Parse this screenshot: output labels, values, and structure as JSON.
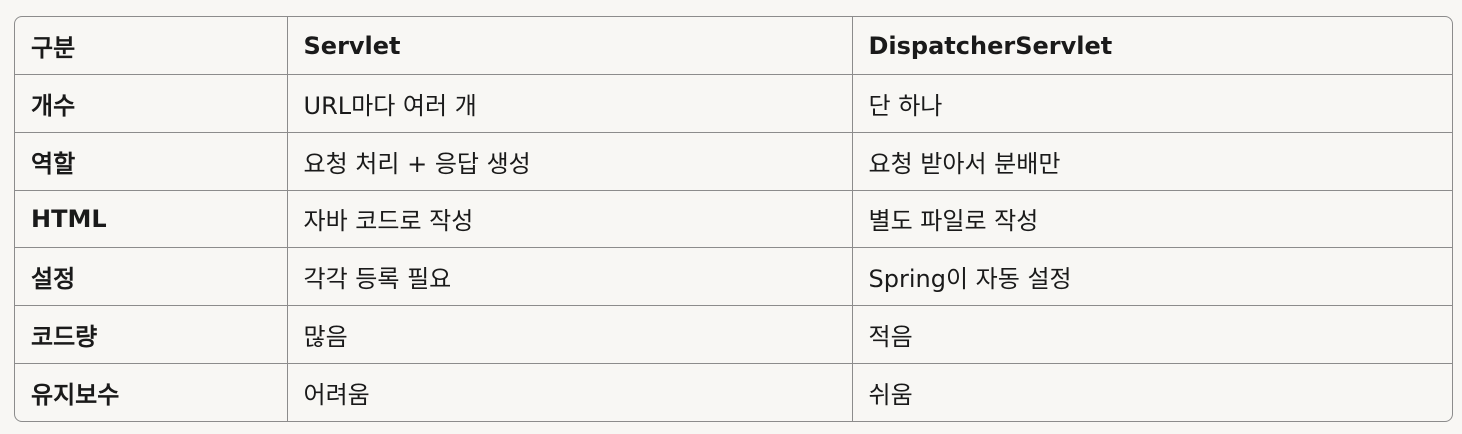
{
  "table": {
    "headers": [
      "구분",
      "Servlet",
      "DispatcherServlet"
    ],
    "rows": [
      [
        "개수",
        "URL마다 여러 개",
        "단 하나"
      ],
      [
        "역할",
        "요청 처리 + 응답 생성",
        "요청 받아서 분배만"
      ],
      [
        "HTML",
        "자바 코드로 작성",
        "별도 파일로 작성"
      ],
      [
        "설정",
        "각각 등록 필요",
        "Spring이 자동 설정"
      ],
      [
        "코드량",
        "많음",
        "적음"
      ],
      [
        "유지보수",
        "어려움",
        "쉬움"
      ]
    ]
  }
}
